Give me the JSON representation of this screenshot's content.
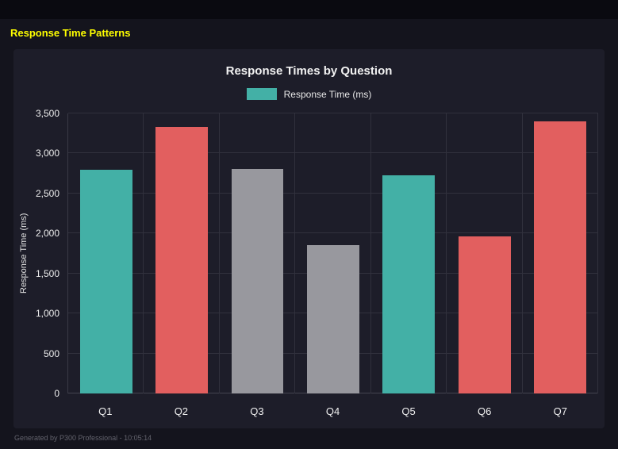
{
  "page": {
    "heading": "Response Time Patterns",
    "footer": "Generated by P300 Professional - 10:05:14"
  },
  "colors": {
    "heading": "#ffff00",
    "teal": "#43b0a6",
    "red": "#e25f5f",
    "gray": "#98989e"
  },
  "chart_data": {
    "type": "bar",
    "title": "Response Times by Question",
    "legend": {
      "label": "Response Time (ms)",
      "color": "#43b0a6",
      "position": "top"
    },
    "categories": [
      "Q1",
      "Q2",
      "Q3",
      "Q4",
      "Q5",
      "Q6",
      "Q7"
    ],
    "values": [
      2800,
      3330,
      2810,
      1850,
      2730,
      1960,
      3400
    ],
    "bar_colors": [
      "#43b0a6",
      "#e25f5f",
      "#98989e",
      "#98989e",
      "#43b0a6",
      "#e25f5f",
      "#e25f5f"
    ],
    "xlabel": "",
    "ylabel": "Response Time (ms)",
    "ylim": [
      0,
      3500
    ],
    "grid": true,
    "yticks": [
      {
        "v": 0,
        "label": "0"
      },
      {
        "v": 500,
        "label": "500"
      },
      {
        "v": 1000,
        "label": "1,000"
      },
      {
        "v": 1500,
        "label": "1,500"
      },
      {
        "v": 2000,
        "label": "2,000"
      },
      {
        "v": 2500,
        "label": "2,500"
      },
      {
        "v": 3000,
        "label": "3,000"
      },
      {
        "v": 3500,
        "label": "3,500"
      }
    ]
  }
}
